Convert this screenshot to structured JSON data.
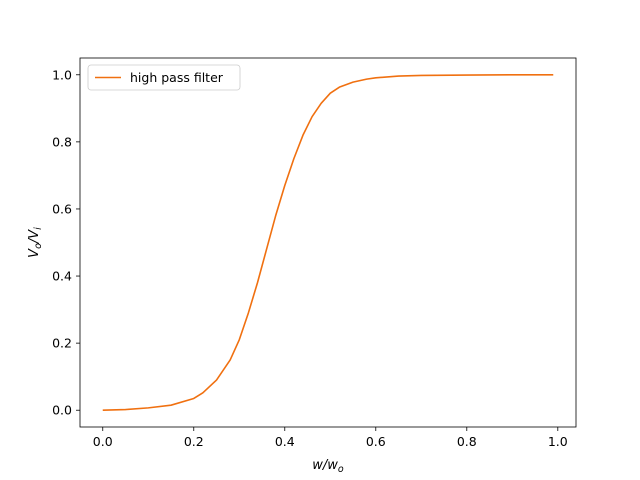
{
  "chart_data": {
    "type": "line",
    "title": "",
    "xlabel": "w/w_o",
    "ylabel": "V_o/V_i",
    "xlim": [
      -0.05,
      1.04
    ],
    "ylim": [
      -0.05,
      1.05
    ],
    "x_ticks": [
      0.0,
      0.2,
      0.4,
      0.6,
      0.8,
      1.0
    ],
    "y_ticks": [
      0.0,
      0.2,
      0.4,
      0.6,
      0.8,
      1.0
    ],
    "x_tick_labels": [
      "0.0",
      "0.2",
      "0.4",
      "0.6",
      "0.8",
      "1.0"
    ],
    "y_tick_labels": [
      "0.0",
      "0.2",
      "0.4",
      "0.6",
      "0.8",
      "1.0"
    ],
    "grid": false,
    "legend": {
      "position": "upper-left",
      "entries": [
        "high pass filter"
      ]
    },
    "series": [
      {
        "name": "high pass filter",
        "color": "#f07010",
        "x": [
          0.0,
          0.05,
          0.1,
          0.15,
          0.2,
          0.22,
          0.25,
          0.28,
          0.3,
          0.32,
          0.34,
          0.36,
          0.38,
          0.4,
          0.42,
          0.44,
          0.46,
          0.48,
          0.5,
          0.52,
          0.55,
          0.58,
          0.6,
          0.65,
          0.7,
          0.8,
          0.9,
          0.99
        ],
        "values": [
          0.0,
          0.002,
          0.007,
          0.015,
          0.035,
          0.052,
          0.09,
          0.15,
          0.21,
          0.29,
          0.38,
          0.48,
          0.58,
          0.67,
          0.75,
          0.82,
          0.875,
          0.915,
          0.945,
          0.963,
          0.978,
          0.987,
          0.991,
          0.996,
          0.998,
          0.999,
          1.0,
          1.0
        ]
      }
    ]
  }
}
